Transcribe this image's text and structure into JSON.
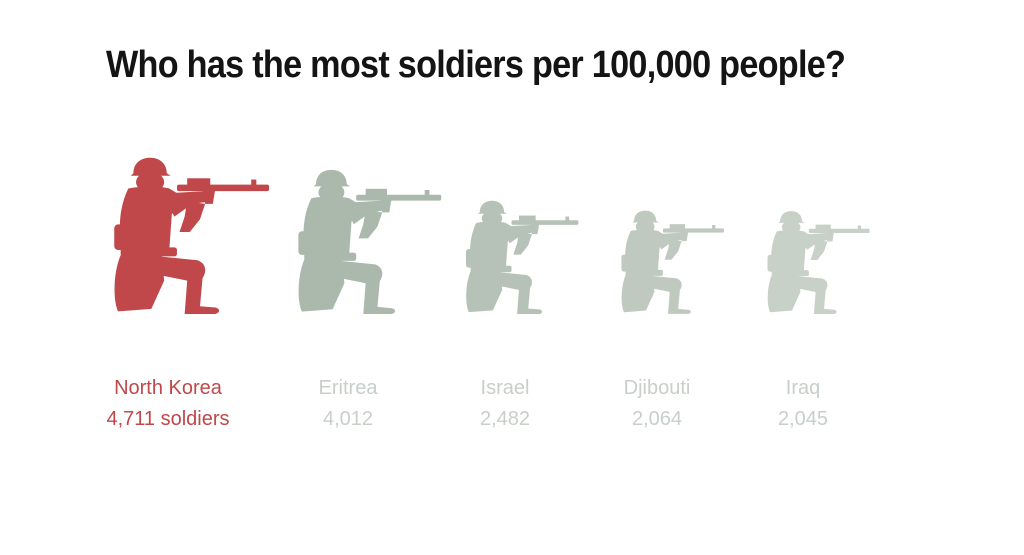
{
  "chart_data": {
    "type": "bar",
    "title": "Who has the most soldiers per 100,000 people?",
    "categories": [
      "North Korea",
      "Eritrea",
      "Israel",
      "Djibouti",
      "Iraq"
    ],
    "values": [
      4711,
      4012,
      2482,
      2064,
      2045
    ],
    "value_labels": [
      "4,711 soldiers",
      "4,012",
      "2,482",
      "2,064",
      "2,045"
    ],
    "mark": "kneeling-soldier-icon",
    "colors": {
      "highlight": "#c0484a",
      "others": "#a7b5a8",
      "highlight_text": "#c0484a",
      "others_text": "#c8cfc9",
      "title": "#141414"
    }
  }
}
